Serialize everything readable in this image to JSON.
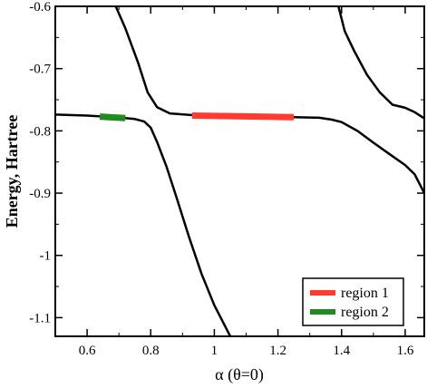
{
  "chart_data": {
    "type": "line",
    "title": "",
    "xlabel": "α (θ=0)",
    "ylabel": "Energy, Hartree",
    "xlim": [
      0.5,
      1.66
    ],
    "ylim": [
      -1.13,
      -0.6
    ],
    "x_ticks": [
      0.6,
      0.8,
      1.0,
      1.2,
      1.4,
      1.6
    ],
    "x_tick_labels": [
      "0.6",
      "0.8",
      "1",
      "1.2",
      "1.4",
      "1.6"
    ],
    "y_ticks": [
      -0.6,
      -0.7,
      -0.8,
      -0.9,
      -1.0,
      -1.1
    ],
    "y_tick_labels": [
      "-0.6",
      "-0.7",
      "-0.8",
      "-0.9",
      "-1",
      "-1.1"
    ],
    "grid": false,
    "legend_position": "bottom-right",
    "curves": [
      {
        "color": "#000000",
        "points": [
          [
            0.5,
            -0.7738
          ],
          [
            0.6,
            -0.7755
          ],
          [
            0.7,
            -0.7785
          ],
          [
            0.75,
            -0.781
          ],
          [
            0.78,
            -0.785
          ],
          [
            0.8,
            -0.795
          ],
          [
            0.82,
            -0.818
          ],
          [
            0.85,
            -0.858
          ],
          [
            0.88,
            -0.905
          ],
          [
            0.92,
            -0.97
          ],
          [
            0.96,
            -1.03
          ],
          [
            1.0,
            -1.08
          ],
          [
            1.03,
            -1.11
          ],
          [
            1.05,
            -1.13
          ]
        ]
      },
      {
        "color": "#000000",
        "points": [
          [
            0.69,
            -0.6
          ],
          [
            0.72,
            -0.635
          ],
          [
            0.76,
            -0.69
          ],
          [
            0.79,
            -0.738
          ],
          [
            0.82,
            -0.762
          ],
          [
            0.86,
            -0.772
          ],
          [
            0.95,
            -0.7755
          ],
          [
            1.1,
            -0.777
          ],
          [
            1.25,
            -0.778
          ],
          [
            1.33,
            -0.779
          ],
          [
            1.37,
            -0.782
          ],
          [
            1.4,
            -0.786
          ],
          [
            1.45,
            -0.8
          ],
          [
            1.5,
            -0.819
          ],
          [
            1.55,
            -0.837
          ],
          [
            1.6,
            -0.855
          ],
          [
            1.63,
            -0.87
          ],
          [
            1.66,
            -0.9
          ]
        ]
      },
      {
        "color": "#000000",
        "points": [
          [
            1.39,
            -0.6
          ],
          [
            1.41,
            -0.64
          ],
          [
            1.44,
            -0.672
          ],
          [
            1.48,
            -0.71
          ],
          [
            1.52,
            -0.738
          ],
          [
            1.56,
            -0.758
          ],
          [
            1.6,
            -0.763
          ],
          [
            1.63,
            -0.77
          ],
          [
            1.66,
            -0.78
          ]
        ]
      }
    ],
    "series": [
      {
        "name": "region 1",
        "color": "#ff3b2f",
        "x": [
          0.93,
          1.25
        ],
        "y": [
          -0.7755,
          -0.778
        ]
      },
      {
        "name": "region 2",
        "color": "#1e8c1e",
        "x": [
          0.64,
          0.72
        ],
        "y": [
          -0.777,
          -0.7795
        ]
      }
    ]
  }
}
